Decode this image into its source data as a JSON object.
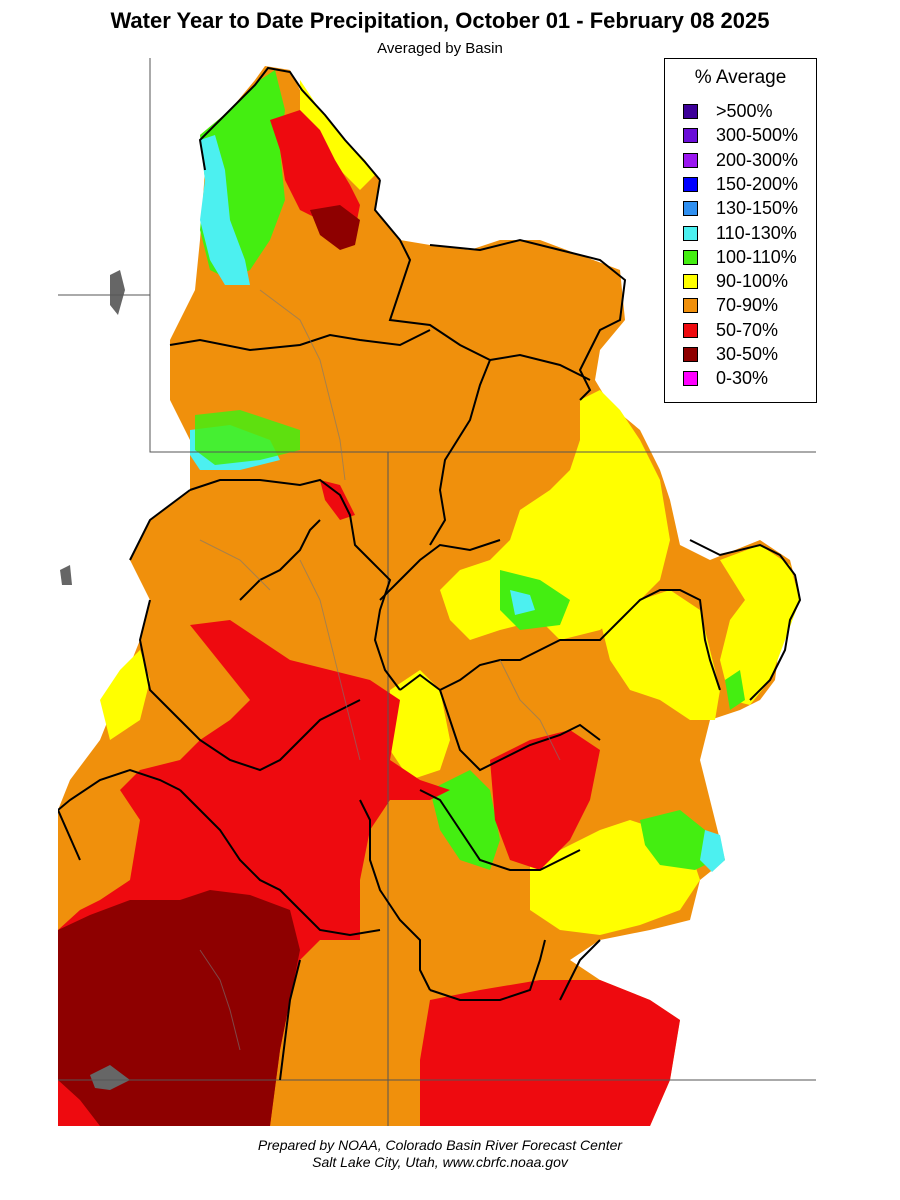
{
  "title": "Water Year to Date Precipitation, October 01  - February 08 2025",
  "subtitle": "Averaged by Basin",
  "legend": {
    "title": "% Average",
    "items": [
      {
        "label": ">500%",
        "color": "#3d0099"
      },
      {
        "label": "300-500%",
        "color": "#6a0dd8"
      },
      {
        "label": "200-300%",
        "color": "#9a17f0"
      },
      {
        "label": "150-200%",
        "color": "#0000ff"
      },
      {
        "label": "130-150%",
        "color": "#2f8ff0"
      },
      {
        "label": "110-130%",
        "color": "#4cf0f0"
      },
      {
        "label": "100-110%",
        "color": "#44ee11"
      },
      {
        "label": "90-100%",
        "color": "#ffff00"
      },
      {
        "label": "70-90%",
        "color": "#f0900c"
      },
      {
        "label": "50-70%",
        "color": "#ee0a0f"
      },
      {
        "label": "30-50%",
        "color": "#8e0000"
      },
      {
        "label": "0-30%",
        "color": "#ff00ff"
      }
    ]
  },
  "credit": {
    "line1": "Prepared by NOAA, Colorado Basin River Forecast Center",
    "line2": "Salt Lake City, Utah, www.cbrfc.noaa.gov"
  }
}
